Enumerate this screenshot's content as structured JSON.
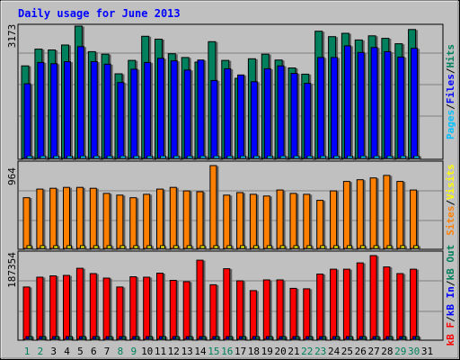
{
  "chart_data": [
    {
      "type": "bar",
      "title": "Daily usage for June 2013",
      "ymax_label": "3173",
      "ylim": [
        0,
        3173
      ],
      "categories": [
        "1",
        "2",
        "3",
        "4",
        "5",
        "6",
        "7",
        "8",
        "9",
        "10",
        "11",
        "12",
        "13",
        "14",
        "15",
        "16",
        "17",
        "18",
        "19",
        "20",
        "21",
        "22",
        "23",
        "24",
        "25",
        "26",
        "27",
        "28",
        "29",
        "30",
        "31"
      ],
      "weekend_days": [
        "1",
        "2",
        "8",
        "9",
        "15",
        "16",
        "22",
        "23",
        "29",
        "30"
      ],
      "series": [
        {
          "name": "Hits",
          "color": "#00805c",
          "values": [
            2220,
            2620,
            2600,
            2720,
            3173,
            2560,
            2500,
            2030,
            2350,
            2930,
            2860,
            2510,
            2420,
            2310,
            2800,
            2350,
            1920,
            2390,
            2500,
            2360,
            2170,
            2020,
            3050,
            2920,
            3000,
            2840,
            2940,
            2880,
            2750,
            3090,
            null
          ]
        },
        {
          "name": "Files",
          "color": "#0000ff",
          "values": [
            1790,
            2300,
            2270,
            2320,
            2680,
            2320,
            2260,
            1820,
            2140,
            2300,
            2400,
            2340,
            2120,
            2360,
            1870,
            2150,
            2000,
            1840,
            2150,
            2220,
            2040,
            1800,
            2420,
            2420,
            2700,
            2540,
            2660,
            2560,
            2430,
            2640,
            null
          ]
        },
        {
          "name": "Pages",
          "color": "#00c0ff",
          "values": [
            60,
            60,
            60,
            60,
            60,
            60,
            60,
            60,
            60,
            60,
            60,
            60,
            60,
            60,
            60,
            60,
            60,
            60,
            60,
            60,
            60,
            60,
            60,
            60,
            60,
            60,
            60,
            60,
            60,
            60,
            null
          ]
        }
      ]
    },
    {
      "type": "bar",
      "ymax_label": "964",
      "ylim": [
        0,
        964
      ],
      "series": [
        {
          "name": "Visits",
          "color": "#ffff00",
          "values": [
            20,
            20,
            20,
            20,
            20,
            20,
            20,
            20,
            20,
            20,
            20,
            20,
            20,
            20,
            20,
            20,
            20,
            20,
            20,
            20,
            20,
            20,
            20,
            20,
            20,
            20,
            20,
            20,
            20,
            20,
            null
          ]
        },
        {
          "name": "Sites",
          "color": "#ff8000",
          "values": [
            590,
            690,
            700,
            710,
            710,
            700,
            640,
            620,
            590,
            630,
            690,
            710,
            670,
            660,
            964,
            620,
            650,
            630,
            610,
            680,
            640,
            630,
            560,
            670,
            780,
            800,
            820,
            850,
            780,
            680,
            null
          ]
        }
      ]
    },
    {
      "type": "bar",
      "ymax_label": "187354",
      "ylim": [
        0,
        187354
      ],
      "series": [
        {
          "name": "kB Out",
          "color": "#00805c",
          "values": [
            1500,
            1500,
            1500,
            1500,
            1500,
            1500,
            1500,
            1500,
            1500,
            1500,
            1500,
            1500,
            1500,
            1500,
            1500,
            1500,
            1500,
            1500,
            1500,
            1500,
            1500,
            1500,
            1500,
            1500,
            1500,
            1500,
            1500,
            1500,
            1500,
            1500,
            null
          ]
        },
        {
          "name": "kB In",
          "color": "#0000ff",
          "values": [
            1000,
            1000,
            1000,
            1000,
            1000,
            1000,
            1000,
            1000,
            1000,
            1000,
            1000,
            1000,
            1000,
            1000,
            1000,
            1000,
            1000,
            1000,
            1000,
            1000,
            1000,
            1000,
            1000,
            1000,
            1000,
            1000,
            1000,
            1000,
            1000,
            1000,
            null
          ]
        },
        {
          "name": "kB F",
          "color": "#ff0000",
          "values": [
            117000,
            139000,
            142000,
            143000,
            159000,
            147000,
            137000,
            117000,
            140000,
            139000,
            148000,
            132000,
            129000,
            177000,
            122000,
            158000,
            131000,
            109000,
            133000,
            133000,
            114000,
            113000,
            146000,
            157000,
            157000,
            171000,
            187354,
            162000,
            147000,
            157000,
            null
          ]
        }
      ]
    }
  ]
}
